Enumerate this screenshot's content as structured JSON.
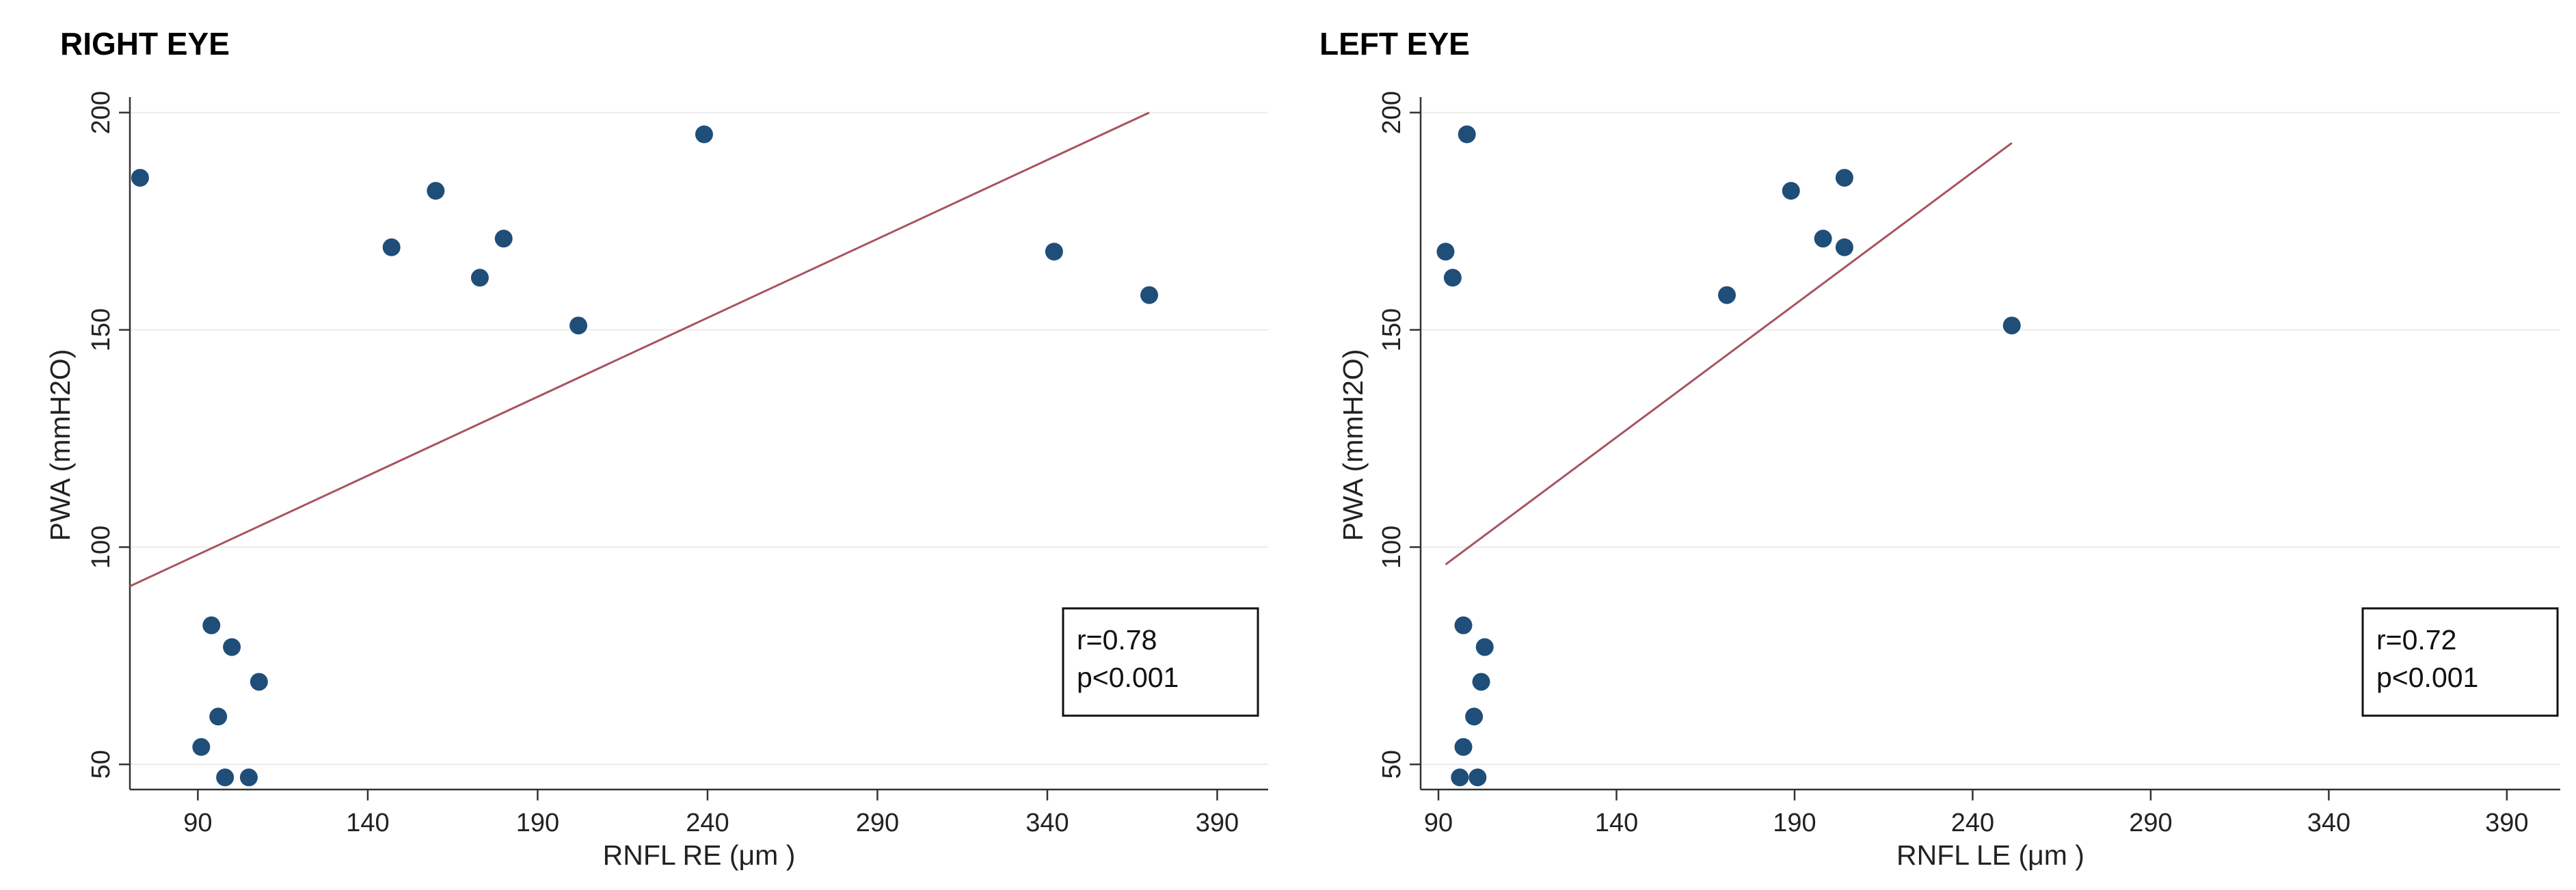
{
  "chart_data": [
    {
      "type": "scatter",
      "title": "RIGHT EYE",
      "xlabel": "RNFL RE (μm )",
      "ylabel": "PWA (mmH2O)",
      "xlim": [
        70,
        405
      ],
      "ylim": [
        45,
        202
      ],
      "x_ticks": [
        90,
        140,
        190,
        240,
        290,
        340,
        390
      ],
      "y_ticks": [
        50,
        100,
        150,
        200
      ],
      "grid": true,
      "points": [
        {
          "x": 73,
          "y": 185
        },
        {
          "x": 147,
          "y": 169
        },
        {
          "x": 160,
          "y": 182
        },
        {
          "x": 173,
          "y": 162
        },
        {
          "x": 180,
          "y": 171
        },
        {
          "x": 202,
          "y": 151
        },
        {
          "x": 239,
          "y": 195
        },
        {
          "x": 342,
          "y": 168
        },
        {
          "x": 370,
          "y": 158
        },
        {
          "x": 94,
          "y": 82
        },
        {
          "x": 100,
          "y": 77
        },
        {
          "x": 108,
          "y": 69
        },
        {
          "x": 96,
          "y": 61
        },
        {
          "x": 91,
          "y": 54
        },
        {
          "x": 98,
          "y": 47
        },
        {
          "x": 105,
          "y": 47
        }
      ],
      "fit_line": {
        "x": [
          70,
          370
        ],
        "y": [
          91,
          200
        ]
      },
      "stat_lines": [
        "r=0.78",
        "p<0.001"
      ],
      "stat_box_position": "bottom-right",
      "colors": {
        "points": "#1f4e79",
        "fit_line": "#a8545f"
      }
    },
    {
      "type": "scatter",
      "title": "LEFT EYE",
      "xlabel": "RNFL LE (μm )",
      "ylabel": "PWA (mmH2O)",
      "xlim": [
        85,
        405
      ],
      "ylim": [
        45,
        202
      ],
      "x_ticks": [
        90,
        140,
        190,
        240,
        290,
        340,
        390
      ],
      "y_ticks": [
        50,
        100,
        150,
        200
      ],
      "grid": true,
      "points": [
        {
          "x": 98,
          "y": 195
        },
        {
          "x": 92,
          "y": 168
        },
        {
          "x": 94,
          "y": 162
        },
        {
          "x": 171,
          "y": 158
        },
        {
          "x": 189,
          "y": 182
        },
        {
          "x": 198,
          "y": 171
        },
        {
          "x": 204,
          "y": 185
        },
        {
          "x": 204,
          "y": 169
        },
        {
          "x": 251,
          "y": 151
        },
        {
          "x": 97,
          "y": 82
        },
        {
          "x": 103,
          "y": 77
        },
        {
          "x": 102,
          "y": 69
        },
        {
          "x": 100,
          "y": 61
        },
        {
          "x": 97,
          "y": 54
        },
        {
          "x": 96,
          "y": 47
        },
        {
          "x": 101,
          "y": 47
        }
      ],
      "fit_line": {
        "x": [
          92,
          251
        ],
        "y": [
          96,
          193
        ]
      },
      "stat_lines": [
        "r=0.72",
        "p<0.001"
      ],
      "stat_box_position": "bottom-right",
      "colors": {
        "points": "#1f4e79",
        "fit_line": "#a8545f"
      }
    }
  ]
}
